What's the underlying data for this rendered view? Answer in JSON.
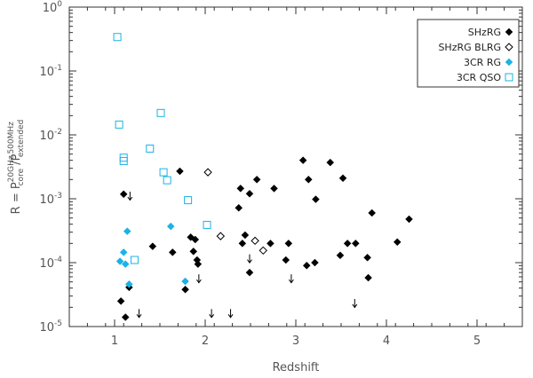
{
  "chart_data": {
    "type": "scatter",
    "xlabel": "Redshift",
    "ylabel": {
      "prefix": "R  =  P",
      "num_sup": "20GHz",
      "num_sub": "core",
      "sep": " /P",
      "den_sup": "500MHz",
      "den_sub": "extended"
    },
    "xlim": [
      0.5,
      5.5
    ],
    "ylim": [
      1e-05,
      1
    ],
    "yscale": "log",
    "x_ticks": [
      1,
      2,
      3,
      4,
      5
    ],
    "x_tick_labels": [
      "1",
      "2",
      "3",
      "4",
      "5"
    ],
    "y_ticks": [
      1e-05,
      0.0001,
      0.001,
      0.01,
      0.1,
      1
    ],
    "y_tick_labels": [
      {
        "base": "10",
        "exp": "-5"
      },
      {
        "base": "10",
        "exp": "-4"
      },
      {
        "base": "10",
        "exp": "-3"
      },
      {
        "base": "10",
        "exp": "-2"
      },
      {
        "base": "10",
        "exp": "-1"
      },
      {
        "base": "10",
        "exp": "0"
      }
    ],
    "grid": false,
    "legend_position": "top-right",
    "series": [
      {
        "name": "SHzRG",
        "marker": "filled-diamond",
        "color": "#000000",
        "points": [
          [
            1.07,
            2.5e-05
          ],
          [
            1.1,
            0.00118
          ],
          [
            1.12,
            1.4e-05
          ],
          [
            1.16,
            4.1e-05
          ],
          [
            1.42,
            0.00018
          ],
          [
            1.64,
            0.000145
          ],
          [
            1.72,
            0.0027
          ],
          [
            1.78,
            3.8e-05
          ],
          [
            1.84,
            0.00025
          ],
          [
            1.87,
            0.00015
          ],
          [
            1.89,
            0.00023
          ],
          [
            1.91,
            0.00011
          ],
          [
            1.92,
            9.5e-05
          ],
          [
            2.37,
            0.00072
          ],
          [
            2.39,
            0.00145
          ],
          [
            2.41,
            0.0002
          ],
          [
            2.44,
            0.00027
          ],
          [
            2.49,
            0.0012
          ],
          [
            2.49,
            7e-05
          ],
          [
            2.57,
            0.002
          ],
          [
            2.72,
            0.0002
          ],
          [
            2.76,
            0.00145
          ],
          [
            2.89,
            0.00011
          ],
          [
            2.92,
            0.0002
          ],
          [
            3.08,
            0.004
          ],
          [
            3.12,
            9e-05
          ],
          [
            3.14,
            0.002
          ],
          [
            3.21,
            0.0001
          ],
          [
            3.22,
            0.00098
          ],
          [
            3.38,
            0.0037
          ],
          [
            3.49,
            0.00013
          ],
          [
            3.52,
            0.0021
          ],
          [
            3.57,
            0.0002
          ],
          [
            3.66,
            0.0002
          ],
          [
            3.79,
            0.00012
          ],
          [
            3.8,
            5.8e-05
          ],
          [
            3.84,
            0.0006
          ],
          [
            4.12,
            0.00021
          ],
          [
            4.25,
            0.00048
          ]
        ]
      },
      {
        "name": "SHzRG BLRG",
        "marker": "open-diamond",
        "color": "#000000",
        "points": [
          [
            2.03,
            0.0026
          ],
          [
            2.17,
            0.00026
          ],
          [
            2.55,
            0.00022
          ],
          [
            2.64,
            0.000155
          ]
        ]
      },
      {
        "name": "3CR RG",
        "marker": "filled-diamond",
        "color": "#1ab3e6",
        "points": [
          [
            1.06,
            0.000105
          ],
          [
            1.1,
            0.000145
          ],
          [
            1.12,
            9.5e-05
          ],
          [
            1.14,
            0.00031
          ],
          [
            1.16,
            4.6e-05
          ],
          [
            1.62,
            0.00037
          ],
          [
            1.78,
            5.1e-05
          ]
        ]
      },
      {
        "name": "3CR QSO",
        "marker": "open-square",
        "color": "#1ab3e6",
        "points": [
          [
            1.03,
            0.34
          ],
          [
            1.05,
            0.0145
          ],
          [
            1.1,
            0.0044
          ],
          [
            1.1,
            0.0039
          ],
          [
            1.22,
            0.00011
          ],
          [
            1.39,
            0.0061
          ],
          [
            1.51,
            0.022
          ],
          [
            1.54,
            0.0026
          ],
          [
            1.58,
            0.00195
          ],
          [
            1.81,
            0.00095
          ],
          [
            2.02,
            0.00039
          ]
        ]
      }
    ],
    "upper_limits": {
      "marker": "down-arrow",
      "color": "#000000",
      "points": [
        [
          1.17,
          0.0011
        ],
        [
          1.27,
          1.6e-05
        ],
        [
          1.93,
          5.6e-05
        ],
        [
          2.07,
          1.6e-05
        ],
        [
          2.28,
          1.6e-05
        ],
        [
          2.49,
          0.000115
        ],
        [
          2.95,
          5.6e-05
        ],
        [
          3.65,
          2.3e-05
        ]
      ]
    }
  }
}
